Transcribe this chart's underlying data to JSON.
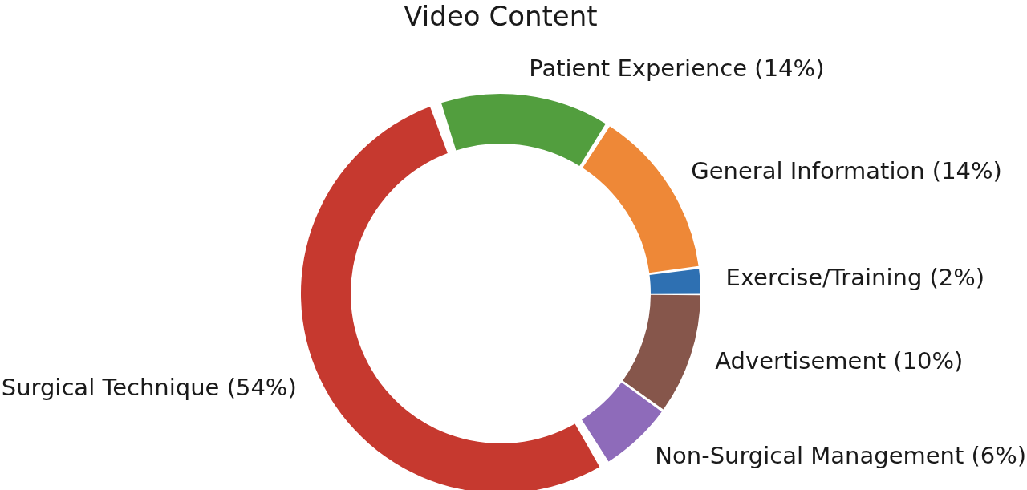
{
  "chart_data": {
    "type": "donut",
    "title": "Video Content",
    "categories": [
      "Advertisement",
      "Non-Surgical Management",
      "Surgical Technique",
      "Patient Experience",
      "General Information",
      "Exercise/Training"
    ],
    "values": [
      10,
      6,
      54,
      14,
      14,
      2
    ],
    "value_labels": [
      "(10%)",
      "(6%)",
      "(54%)",
      "(14%)",
      "(14%)",
      "(2%)"
    ],
    "colors": [
      "#86564b",
      "#8e6bba",
      "#c6392f",
      "#529e3e",
      "#ee8837",
      "#2e70b2"
    ]
  }
}
